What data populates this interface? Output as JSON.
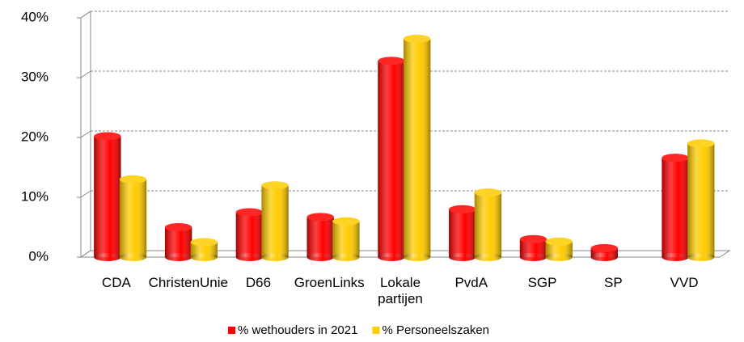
{
  "chart_data": {
    "type": "bar",
    "categories": [
      "CDA",
      "ChristenUnie",
      "D66",
      "GroenLinks",
      "Lokale partijen",
      "PvdA",
      "SGP",
      "SP",
      "VVD"
    ],
    "series": [
      {
        "name": "% wethouders in 2021",
        "color": "#ff0000",
        "values": [
          20.2,
          5,
          7.5,
          6.7,
          32.8,
          8,
          3,
          1.5,
          16.6
        ]
      },
      {
        "name": "% Personeelszaken",
        "color": "#ffcc00",
        "values": [
          13,
          2.5,
          12,
          6,
          36.5,
          10.8,
          2.6,
          null,
          19
        ]
      }
    ],
    "ylim": [
      0,
      40
    ],
    "yticks": [
      {
        "value": 0,
        "label": "0%"
      },
      {
        "value": 10,
        "label": "10%"
      },
      {
        "value": 20,
        "label": "20%"
      },
      {
        "value": 30,
        "label": "30%"
      },
      {
        "value": 40,
        "label": "40%"
      }
    ],
    "grid": true,
    "legend": "bottom"
  }
}
